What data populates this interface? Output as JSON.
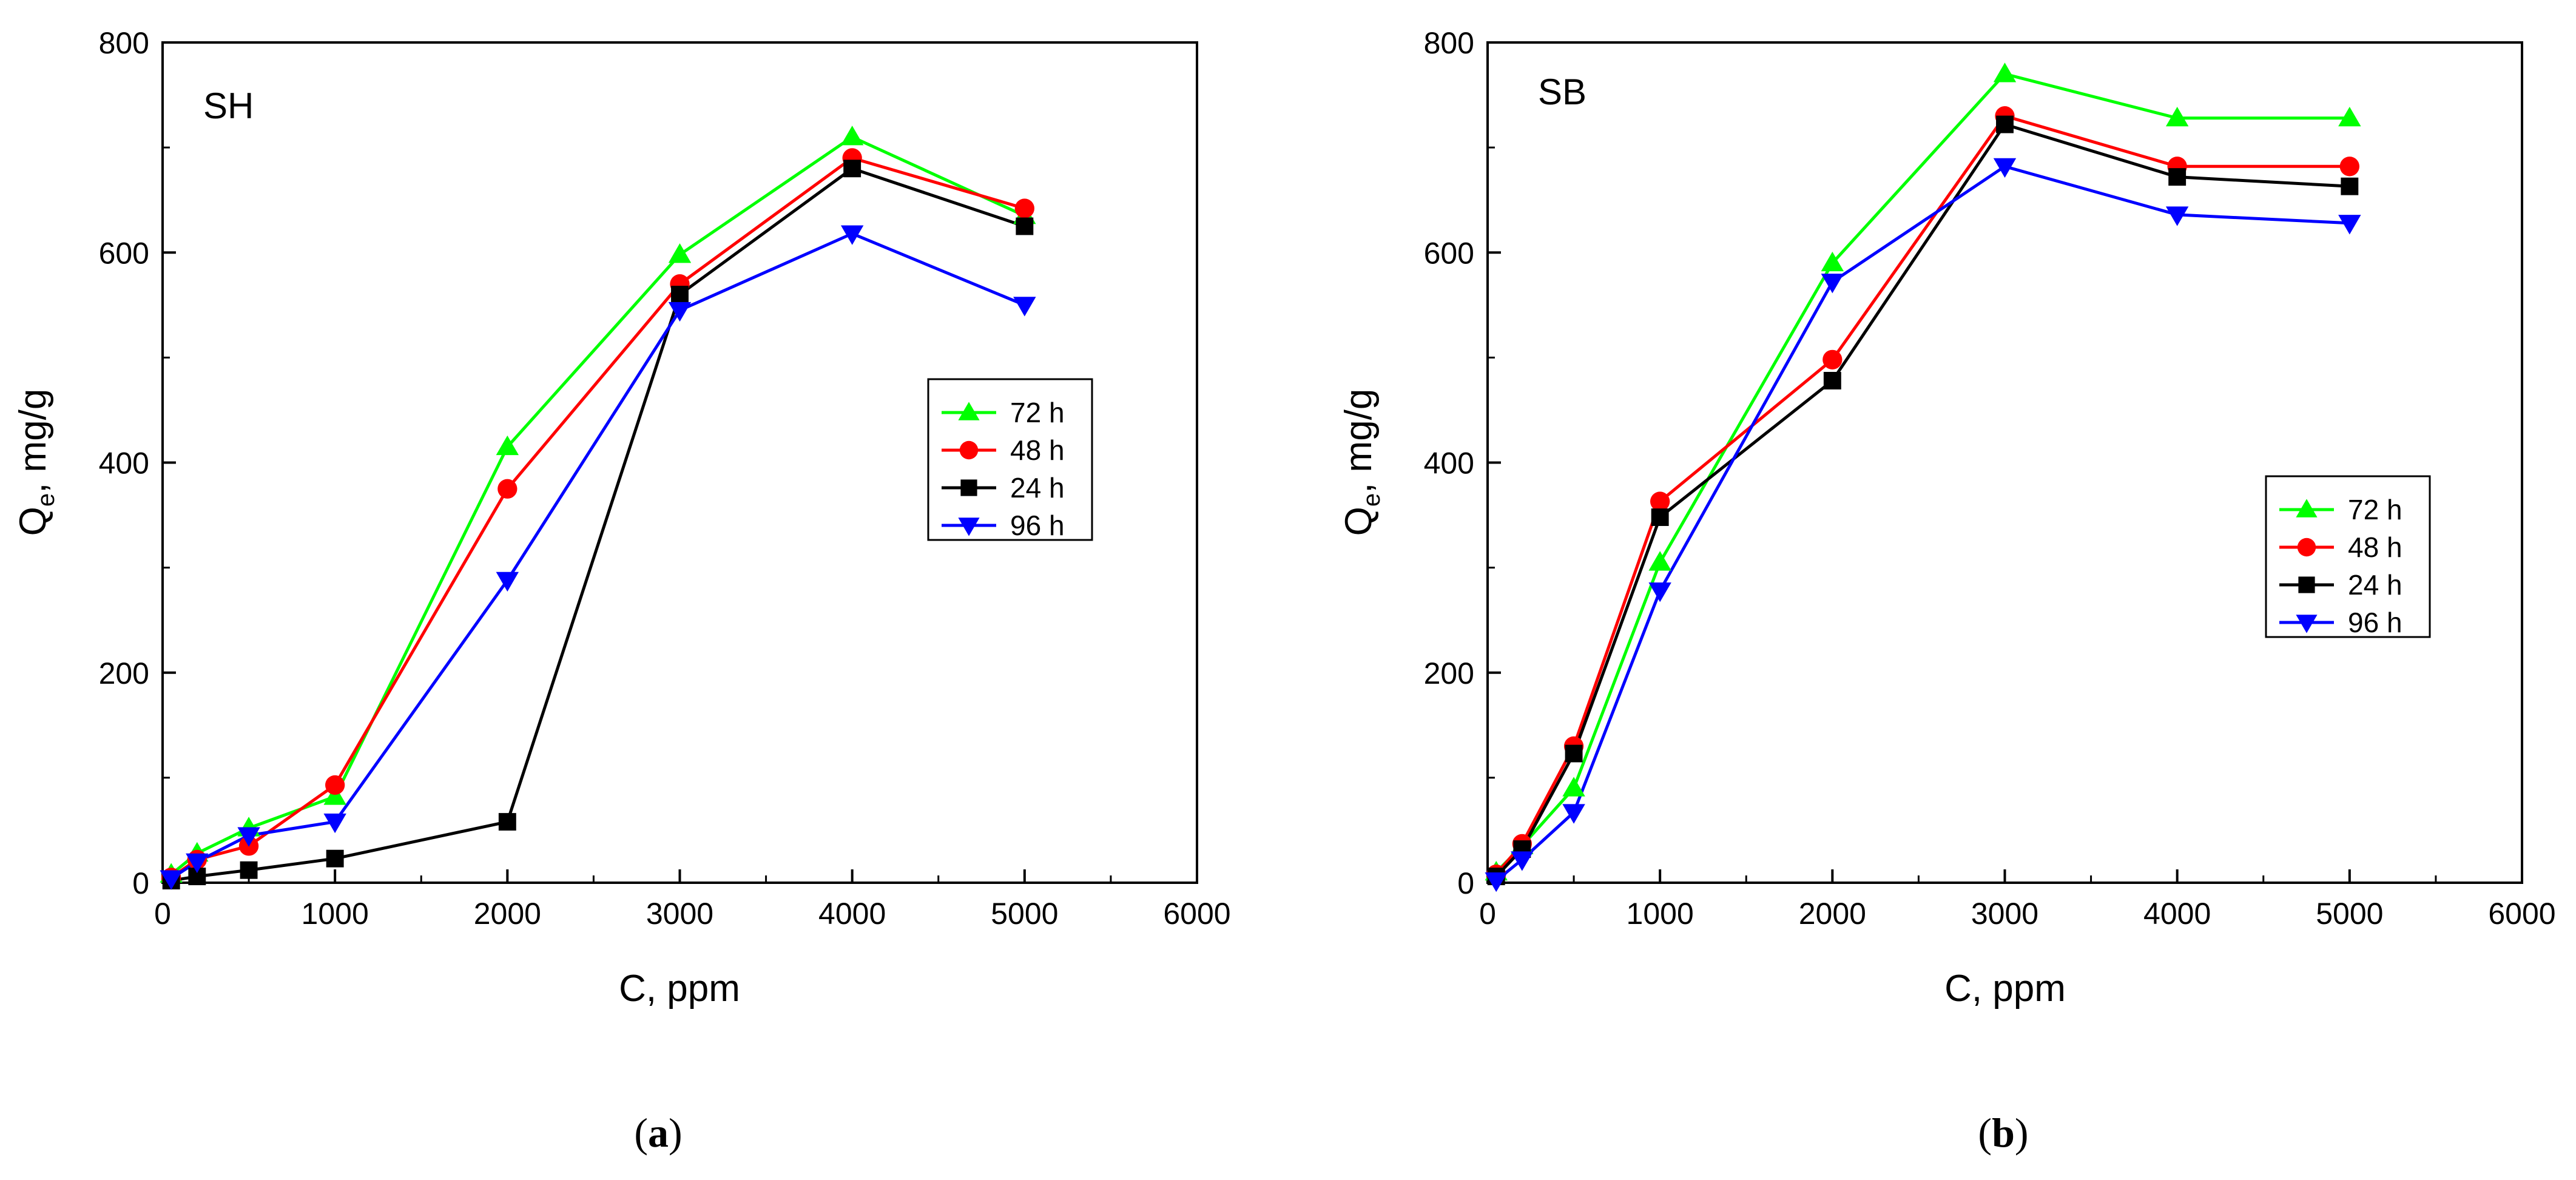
{
  "chart_data": [
    {
      "type": "line",
      "title": "SH",
      "caption": "(a)",
      "caption_letter": "a",
      "xlabel": "C, ppm",
      "ylabel": "Q",
      "ylabel_sub": "e",
      "ylabel_suffix": ", mg/g",
      "xlim": [
        0,
        6000
      ],
      "ylim": [
        0,
        800
      ],
      "xticks": [
        0,
        1000,
        2000,
        3000,
        4000,
        5000,
        6000
      ],
      "yticks": [
        0,
        200,
        400,
        600,
        800
      ],
      "xtick_labels": [
        "0",
        "1000",
        "2000",
        "3000",
        "4000",
        "5000",
        "6000"
      ],
      "ytick_labels": [
        "0",
        "200",
        "400",
        "600",
        "800"
      ],
      "legend_position": "right-middle",
      "x": [
        50,
        200,
        500,
        1000,
        2000,
        3000,
        4000,
        5000
      ],
      "series": [
        {
          "name": "72 h",
          "color": "#00ff00",
          "marker": "triangle-up",
          "values": [
            8,
            28,
            52,
            82,
            415,
            598,
            710,
            635
          ]
        },
        {
          "name": "48 h",
          "color": "#ff0000",
          "marker": "circle",
          "values": [
            5,
            22,
            35,
            93,
            375,
            570,
            690,
            642
          ]
        },
        {
          "name": "24 h",
          "color": "#000000",
          "marker": "square",
          "values": [
            2,
            6,
            12,
            23,
            58,
            560,
            680,
            625
          ]
        },
        {
          "name": "96 h",
          "color": "#0000ff",
          "marker": "triangle-down",
          "values": [
            4,
            20,
            45,
            58,
            288,
            545,
            618,
            550
          ]
        }
      ]
    },
    {
      "type": "line",
      "title": "SB",
      "caption": "(b)",
      "caption_letter": "b",
      "xlabel": "C, ppm",
      "ylabel": "Q",
      "ylabel_sub": "e",
      "ylabel_suffix": ", mg/g",
      "xlim": [
        0,
        6000
      ],
      "ylim": [
        0,
        800
      ],
      "xticks": [
        0,
        1000,
        2000,
        3000,
        4000,
        5000,
        6000
      ],
      "yticks": [
        0,
        200,
        400,
        600,
        800
      ],
      "xtick_labels": [
        "0",
        "1000",
        "2000",
        "3000",
        "4000",
        "5000",
        "6000"
      ],
      "ytick_labels": [
        "0",
        "200",
        "400",
        "600",
        "800"
      ],
      "legend_position": "right-middle",
      "x": [
        50,
        200,
        500,
        1000,
        2000,
        3000,
        4000,
        5000
      ],
      "series": [
        {
          "name": "72 h",
          "color": "#00ff00",
          "marker": "triangle-up",
          "values": [
            10,
            35,
            90,
            305,
            590,
            770,
            728,
            728
          ]
        },
        {
          "name": "48 h",
          "color": "#ff0000",
          "marker": "circle",
          "values": [
            8,
            37,
            130,
            363,
            498,
            730,
            682,
            682
          ]
        },
        {
          "name": "24 h",
          "color": "#000000",
          "marker": "square",
          "values": [
            6,
            32,
            123,
            348,
            478,
            722,
            672,
            663
          ]
        },
        {
          "name": "96 h",
          "color": "#0000ff",
          "marker": "triangle-down",
          "values": [
            2,
            22,
            67,
            278,
            572,
            682,
            636,
            628
          ]
        }
      ]
    }
  ]
}
